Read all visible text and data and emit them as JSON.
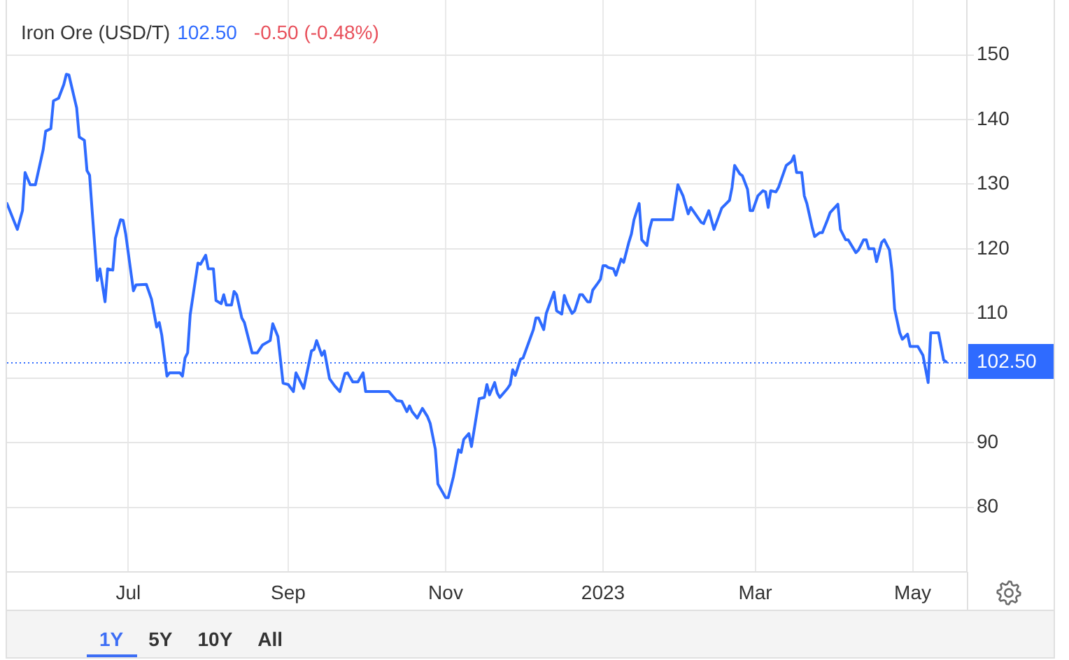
{
  "chart_data": {
    "type": "line",
    "title": "Iron Ore (USD/T)",
    "annotations": [
      "102.50",
      "-0.50 (-0.48%)",
      "1Y",
      "5Y",
      "10Y",
      "All"
    ],
    "x": [
      "2022-05-15",
      "2022-05-19",
      "2022-05-21",
      "2022-05-22",
      "2022-05-24",
      "2022-05-26",
      "2022-05-29",
      "2022-05-30",
      "2022-06-01",
      "2022-06-02",
      "2022-06-04",
      "2022-06-06",
      "2022-06-07",
      "2022-06-08",
      "2022-06-11",
      "2022-06-12",
      "2022-06-14",
      "2022-06-15",
      "2022-06-16",
      "2022-06-17",
      "2022-06-19",
      "2022-06-20",
      "2022-06-22",
      "2022-06-23",
      "2022-06-25",
      "2022-06-26",
      "2022-06-28",
      "2022-06-29",
      "2022-06-30",
      "2022-07-03",
      "2022-07-04",
      "2022-07-08",
      "2022-07-10",
      "2022-07-12",
      "2022-07-13",
      "2022-07-14",
      "2022-07-16",
      "2022-07-17",
      "2022-07-21",
      "2022-07-22",
      "2022-07-23",
      "2022-07-24",
      "2022-07-25",
      "2022-07-28",
      "2022-07-29",
      "2022-07-31",
      "2022-08-01",
      "2022-08-03",
      "2022-08-04",
      "2022-08-06",
      "2022-08-07",
      "2022-08-08",
      "2022-08-10",
      "2022-08-11",
      "2022-08-12",
      "2022-08-14",
      "2022-08-15",
      "2022-08-18",
      "2022-08-20",
      "2022-08-22",
      "2022-08-25",
      "2022-08-26",
      "2022-08-28",
      "2022-08-30",
      "2022-09-01",
      "2022-09-03",
      "2022-09-04",
      "2022-09-07",
      "2022-09-10",
      "2022-09-11",
      "2022-09-12",
      "2022-09-14",
      "2022-09-15",
      "2022-09-17",
      "2022-09-19",
      "2022-09-21",
      "2022-09-23",
      "2022-09-24",
      "2022-09-26",
      "2022-09-28",
      "2022-09-30",
      "2022-10-01",
      "2022-10-10",
      "2022-10-13",
      "2022-10-15",
      "2022-10-17",
      "2022-10-18",
      "2022-10-19",
      "2022-10-21",
      "2022-10-23",
      "2022-10-25",
      "2022-10-26",
      "2022-10-28",
      "2022-10-29",
      "2022-11-01",
      "2022-11-02",
      "2022-11-04",
      "2022-11-06",
      "2022-11-07",
      "2022-11-08",
      "2022-11-10",
      "2022-11-11",
      "2022-11-14",
      "2022-11-16",
      "2022-11-17",
      "2022-11-18",
      "2022-11-20",
      "2022-11-21",
      "2022-11-22",
      "2022-11-25",
      "2022-11-26",
      "2022-11-27",
      "2022-11-28",
      "2022-11-30",
      "2022-12-01",
      "2022-12-03",
      "2022-12-05",
      "2022-12-06",
      "2022-12-07",
      "2022-12-09",
      "2022-12-10",
      "2022-12-13",
      "2022-12-14",
      "2022-12-16",
      "2022-12-17",
      "2022-12-18",
      "2022-12-20",
      "2022-12-21",
      "2022-12-23",
      "2022-12-24",
      "2022-12-26",
      "2022-12-27",
      "2022-12-28",
      "2022-12-30",
      "2022-12-31",
      "2023-01-01",
      "2023-01-02",
      "2023-01-03",
      "2023-01-05",
      "2023-01-06",
      "2023-01-08",
      "2023-01-09",
      "2023-01-11",
      "2023-01-12",
      "2023-01-13",
      "2023-01-15",
      "2023-01-16",
      "2023-01-18",
      "2023-01-19",
      "2023-01-20",
      "2023-01-28",
      "2023-01-30",
      "2023-02-01",
      "2023-02-03",
      "2023-02-04",
      "2023-02-08",
      "2023-02-09",
      "2023-02-11",
      "2023-02-13",
      "2023-02-16",
      "2023-02-19",
      "2023-02-20",
      "2023-02-21",
      "2023-02-23",
      "2023-02-24",
      "2023-02-26",
      "2023-02-27",
      "2023-02-28",
      "2023-03-02",
      "2023-03-04",
      "2023-03-05",
      "2023-03-06",
      "2023-03-07",
      "2023-03-09",
      "2023-03-10",
      "2023-03-13",
      "2023-03-15",
      "2023-03-16",
      "2023-03-17",
      "2023-03-19",
      "2023-03-20",
      "2023-03-21",
      "2023-03-23",
      "2023-03-24",
      "2023-03-26",
      "2023-03-27",
      "2023-03-29",
      "2023-03-30",
      "2023-04-02",
      "2023-04-03",
      "2023-04-05",
      "2023-04-06",
      "2023-04-09",
      "2023-04-10",
      "2023-04-12",
      "2023-04-13",
      "2023-04-14",
      "2023-04-16",
      "2023-04-17",
      "2023-04-19",
      "2023-04-20",
      "2023-04-22",
      "2023-04-23",
      "2023-04-24",
      "2023-04-26",
      "2023-04-27",
      "2023-04-29",
      "2023-04-30",
      "2023-05-03",
      "2023-05-05",
      "2023-05-07",
      "2023-05-08",
      "2023-05-11",
      "2023-05-13",
      "2023-05-14"
    ],
    "series": [
      {
        "color": "#2f6bff",
        "values": [
          127.0,
          123.0,
          125.9,
          131.8,
          129.9,
          129.9,
          135.3,
          138.2,
          138.6,
          142.9,
          143.3,
          145.4,
          147.0,
          146.9,
          141.8,
          137.3,
          136.8,
          132.1,
          131.4,
          125.9,
          115.1,
          116.9,
          111.8,
          116.9,
          116.7,
          121.6,
          124.5,
          124.4,
          122.3,
          113.5,
          114.4,
          114.5,
          112.2,
          107.9,
          108.6,
          106.6,
          100.3,
          100.8,
          100.8,
          100.3,
          103.1,
          103.9,
          109.8,
          117.8,
          117.6,
          119.0,
          116.9,
          116.9,
          112.0,
          111.5,
          112.9,
          111.3,
          111.3,
          113.4,
          112.9,
          109.3,
          108.6,
          103.9,
          103.9,
          105.1,
          105.8,
          108.4,
          106.4,
          99.2,
          99.0,
          97.9,
          100.8,
          98.4,
          104.2,
          104.4,
          105.8,
          103.5,
          104.2,
          99.9,
          98.8,
          97.9,
          100.7,
          100.8,
          99.4,
          99.4,
          100.8,
          97.9,
          97.9,
          96.5,
          96.4,
          94.8,
          95.7,
          94.8,
          93.8,
          95.3,
          94.0,
          93.0,
          89.0,
          83.6,
          81.5,
          81.5,
          84.7,
          88.9,
          88.5,
          90.5,
          91.4,
          89.4,
          96.8,
          97.0,
          99.0,
          97.4,
          99.3,
          97.7,
          97.0,
          98.4,
          99.0,
          101.3,
          100.4,
          102.9,
          103.1,
          105.3,
          107.5,
          109.3,
          109.3,
          107.5,
          110.0,
          113.3,
          110.4,
          109.9,
          112.8,
          111.6,
          110.0,
          110.4,
          112.9,
          112.9,
          111.8,
          111.8,
          113.6,
          114.7,
          115.3,
          117.4,
          117.4,
          117.1,
          116.9,
          115.9,
          118.4,
          117.9,
          121.0,
          122.3,
          124.5,
          127.0,
          121.4,
          120.5,
          123.0,
          124.5,
          124.5,
          129.9,
          128.2,
          125.4,
          126.4,
          124.1,
          123.9,
          125.9,
          123.0,
          126.3,
          127.5,
          129.5,
          132.9,
          131.6,
          131.3,
          129.2,
          125.9,
          125.9,
          128.2,
          129.0,
          128.8,
          126.4,
          129.0,
          128.8,
          129.5,
          132.9,
          133.5,
          134.4,
          131.8,
          131.8,
          128.2,
          127.0,
          123.4,
          121.9,
          122.5,
          122.5,
          124.5,
          125.6,
          126.9,
          123.0,
          121.4,
          121.4,
          119.4,
          119.8,
          121.4,
          121.4,
          120.0,
          120.0,
          118.0,
          121.0,
          121.4,
          119.8,
          116.5,
          110.7,
          107.0,
          106.0,
          106.8,
          104.9,
          104.9,
          103.5,
          99.3,
          107.0,
          107.0,
          102.8,
          102.5
        ]
      }
    ],
    "xlim": [
      "2022-05-15",
      "2023-05-22"
    ],
    "xticks": [
      {
        "value": "2022-07-01",
        "label": "Jul"
      },
      {
        "value": "2022-09-01",
        "label": "Sep"
      },
      {
        "value": "2022-11-01",
        "label": "Nov"
      },
      {
        "value": "2023-01-01",
        "label": "2023"
      },
      {
        "value": "2023-03-01",
        "label": "Mar"
      },
      {
        "value": "2023-05-01",
        "label": "May"
      }
    ],
    "ylim": [
      70,
      158.5
    ],
    "yticks": [
      80,
      90,
      {
        "value": 100,
        "label": null
      },
      110,
      120,
      130,
      140,
      150
    ],
    "grid": true,
    "ref_lines": [
      {
        "axis": "y",
        "value": 102.5,
        "label": "102.50",
        "color": "#2f6bff",
        "line_style": "dotted"
      }
    ]
  }
}
